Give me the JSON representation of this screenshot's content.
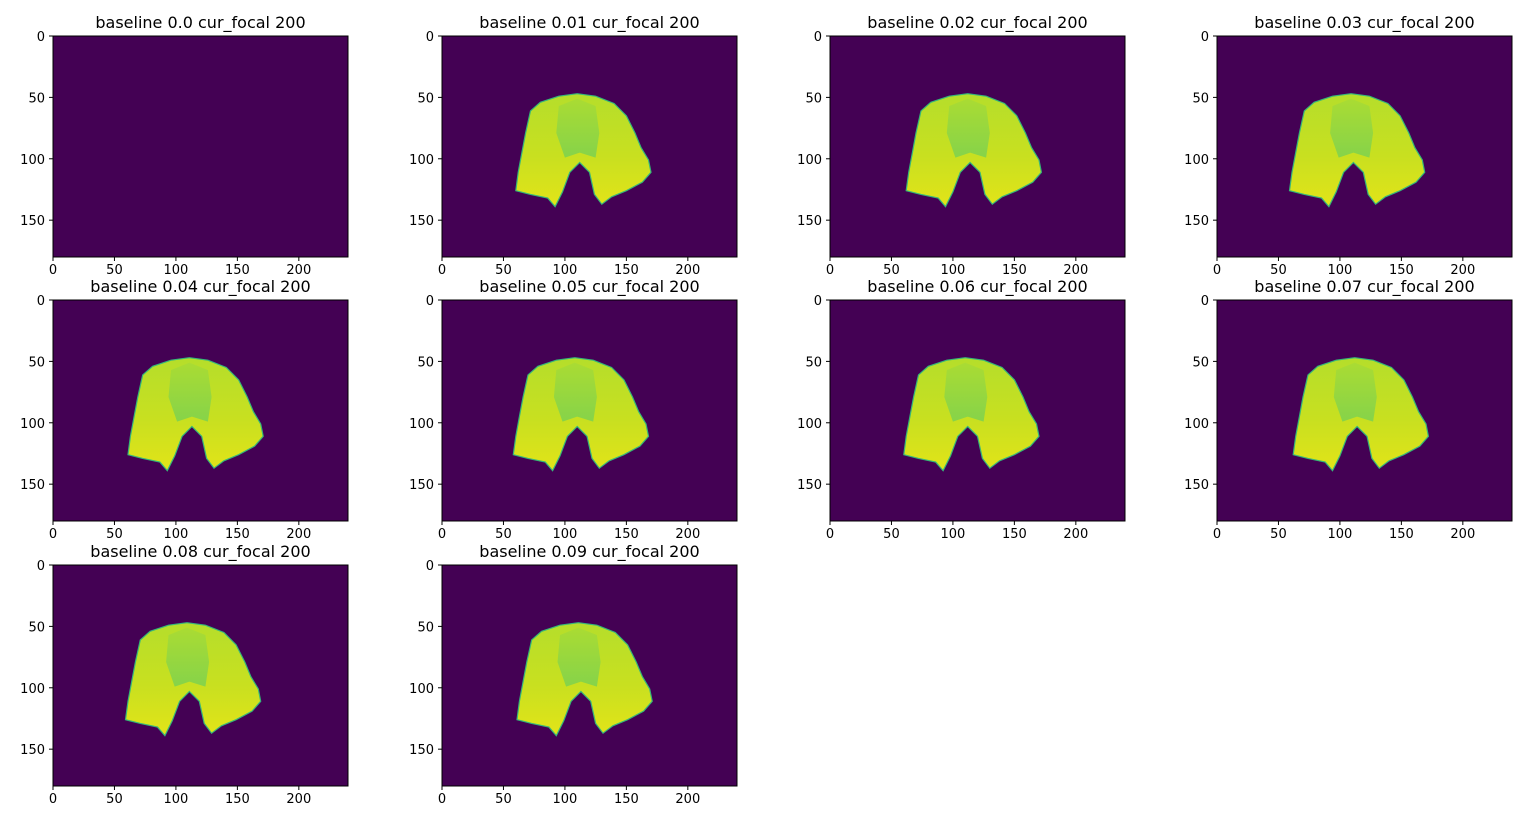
{
  "chart_data": {
    "type": "heatmap",
    "colormap": "viridis",
    "background_color": "#440154",
    "panel_layout": "3 rows x 4 columns, 10 panels",
    "xlim": [
      0,
      240
    ],
    "ylim": [
      180,
      0
    ],
    "xticks": [
      0,
      50,
      100,
      150,
      200
    ],
    "yticks": [
      0,
      50,
      100,
      150
    ],
    "subplots": [
      {
        "title": "baseline 0.0 cur_focal 200",
        "baseline": 0.0,
        "cur_focal": 200,
        "object_visible": false
      },
      {
        "title": "baseline 0.01 cur_focal 200",
        "baseline": 0.01,
        "cur_focal": 200,
        "object_visible": true
      },
      {
        "title": "baseline 0.02 cur_focal 200",
        "baseline": 0.02,
        "cur_focal": 200,
        "object_visible": true
      },
      {
        "title": "baseline 0.03 cur_focal 200",
        "baseline": 0.03,
        "cur_focal": 200,
        "object_visible": true
      },
      {
        "title": "baseline 0.04 cur_focal 200",
        "baseline": 0.04,
        "cur_focal": 200,
        "object_visible": true
      },
      {
        "title": "baseline 0.05 cur_focal 200",
        "baseline": 0.05,
        "cur_focal": 200,
        "object_visible": true
      },
      {
        "title": "baseline 0.06 cur_focal 200",
        "baseline": 0.06,
        "cur_focal": 200,
        "object_visible": true
      },
      {
        "title": "baseline 0.07 cur_focal 200",
        "baseline": 0.07,
        "cur_focal": 200,
        "object_visible": true
      },
      {
        "title": "baseline 0.08 cur_focal 200",
        "baseline": 0.08,
        "cur_focal": 200,
        "object_visible": true
      },
      {
        "title": "baseline 0.09 cur_focal 200",
        "baseline": 0.09,
        "cur_focal": 200,
        "object_visible": true
      }
    ]
  }
}
